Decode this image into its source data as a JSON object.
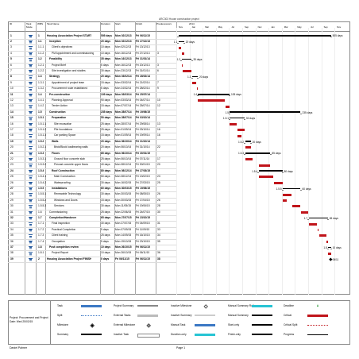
{
  "project_title": "ARC303 House construction project",
  "columns": {
    "id": "ID",
    "mode": "Task Mode",
    "wbs": "WBS",
    "name": "Task Name",
    "duration": "Duration",
    "start": "Start",
    "finish": "Finish",
    "pred": "Predecessors"
  },
  "timescale": {
    "years": [
      "2014"
    ],
    "months": [
      "Nov",
      "Jan",
      "Mar",
      "May",
      "Jul",
      "Sep",
      "Nov",
      "Jan",
      "Mar",
      "May",
      "Jul",
      "Sep",
      "Nov"
    ]
  },
  "tasks": [
    {
      "id": "1",
      "wbs": "1",
      "name": "Housing Association Project START",
      "duration": "505 days",
      "start": "Mon 02/12/13",
      "finish": "Fri 06/11/15",
      "pred": "",
      "summary": true,
      "label": "505 days"
    },
    {
      "id": "2",
      "wbs": "1.1",
      "name": "Inception",
      "duration": "20 days",
      "start": "Mon 02/12/13",
      "finish": "Fri 27/12/13",
      "pred": "",
      "summary": true,
      "label": "20 days",
      "wbs_tag": "1.1"
    },
    {
      "id": "3",
      "wbs": "1.1.1",
      "name": "Client's objectives",
      "duration": "10 days",
      "start": "Mon 02/12/13",
      "finish": "Fri 13/12/13",
      "pred": "",
      "summary": false
    },
    {
      "id": "4",
      "wbs": "1.1.2",
      "name": "PM Appointment and commissioning",
      "duration": "10 days",
      "start": "Mon 16/12/13",
      "finish": "Fri 27/12/13",
      "pred": "3",
      "summary": false
    },
    {
      "id": "5",
      "wbs": "1.2",
      "name": "Feasibility",
      "duration": "35 days",
      "start": "Mon 16/12/13",
      "finish": "Fri 31/01/14",
      "pred": "",
      "summary": true,
      "label": "35 days",
      "wbs_tag": "1.2"
    },
    {
      "id": "6",
      "wbs": "1.2.1",
      "name": "Project Brief",
      "duration": "5 days",
      "start": "Mon 16/12/13",
      "finish": "Fri 20/12/13",
      "pred": "3",
      "summary": false
    },
    {
      "id": "7",
      "wbs": "1.2.2",
      "name": "Site investigation and studies",
      "duration": "30 days",
      "start": "Mon 23/12/13",
      "finish": "Fri 31/01/14",
      "pred": "6",
      "summary": false
    },
    {
      "id": "8",
      "wbs": "1.3",
      "name": "Strategy",
      "duration": "20 days",
      "start": "Mon 03/02/14",
      "finish": "Fri 28/02/14",
      "pred": "",
      "summary": true,
      "label": "20 days",
      "wbs_tag": "1.3"
    },
    {
      "id": "9",
      "wbs": "1.3.1",
      "name": "Appointment of project team",
      "duration": "15 days",
      "start": "Mon 03/02/14",
      "finish": "Fri 21/02/14",
      "pred": "7",
      "summary": false
    },
    {
      "id": "10",
      "wbs": "1.3.2",
      "name": "Procurement route established",
      "duration": "5 days",
      "start": "Mon 24/02/14",
      "finish": "Fri 28/02/14",
      "pred": "9",
      "summary": false
    },
    {
      "id": "11",
      "wbs": "1.4",
      "name": "Pre-construction",
      "duration": "105 days",
      "start": "Mon 03/03/14",
      "finish": "Fri 25/07/14",
      "pred": "",
      "summary": true,
      "label": "105 days",
      "wbs_tag": "1.4"
    },
    {
      "id": "12",
      "wbs": "1.4.1",
      "name": "Planning Approval",
      "duration": "90 days",
      "start": "Mon 03/03/14",
      "finish": "Fri 04/07/14",
      "pred": "10",
      "summary": false
    },
    {
      "id": "13",
      "wbs": "1.4.2",
      "name": "Tender Action",
      "duration": "15 days",
      "start": "Mon 07/07/14",
      "finish": "Fri 25/07/14",
      "pred": "12",
      "summary": false
    },
    {
      "id": "14",
      "wbs": "1.5",
      "name": "Construction",
      "duration": "235 days",
      "start": "Mon 28/07/14",
      "finish": "Fri 19/06/15",
      "pred": "",
      "summary": true,
      "label": "235 days",
      "wbs_tag": "1.5"
    },
    {
      "id": "15",
      "wbs": "1.5.1",
      "name": "Preparation",
      "duration": "50 days",
      "start": "Mon 28/07/14",
      "finish": "Fri 03/10/14",
      "pred": "",
      "summary": true,
      "label": "50 days",
      "wbs_tag": "1.5.1"
    },
    {
      "id": "16",
      "wbs": "1.5.1.1",
      "name": "Site excavation",
      "duration": "25 days",
      "start": "Mon 28/07/14",
      "finish": "Fri 29/08/14",
      "pred": "13",
      "summary": false
    },
    {
      "id": "17",
      "wbs": "1.5.1.2",
      "name": "Pile foundations",
      "duration": "25 days",
      "start": "Mon 01/09/14",
      "finish": "Fri 03/10/14",
      "pred": "16",
      "summary": false
    },
    {
      "id": "18",
      "wbs": "1.5.1.3",
      "name": "Car parking Space",
      "duration": "15 days",
      "start": "Mon 01/09/14",
      "finish": "Fri 19/09/14",
      "pred": "16",
      "summary": false
    },
    {
      "id": "19",
      "wbs": "1.5.2",
      "name": "Walls",
      "duration": "20 days",
      "start": "Mon 06/10/14",
      "finish": "Fri 31/10/14",
      "pred": "",
      "summary": true,
      "label": "20 days",
      "wbs_tag": "1.5.2"
    },
    {
      "id": "20",
      "wbs": "1.5.2.1",
      "name": "Brick/Block loadbearing walls",
      "duration": "20 days",
      "start": "Mon 06/10/14",
      "finish": "Fri 31/10/14",
      "pred": "22",
      "summary": false
    },
    {
      "id": "21",
      "wbs": "1.5.3",
      "name": "Floors",
      "duration": "85 days",
      "start": "Mon 06/10/14",
      "finish": "Fri 30/01/15",
      "pred": "",
      "summary": true,
      "label": "85 days",
      "wbs_tag": "1.5.3"
    },
    {
      "id": "22",
      "wbs": "1.5.3.1",
      "name": "Ground floor concrete slab",
      "duration": "25 days",
      "start": "Mon 06/10/14",
      "finish": "Fri 07/11/14",
      "pred": "17",
      "summary": false
    },
    {
      "id": "23",
      "wbs": "1.5.3.2",
      "name": "Precast concrete upper floors",
      "duration": "40 days",
      "start": "Mon 08/12/14",
      "finish": "Fri 30/01/15",
      "pred": "20",
      "summary": false
    },
    {
      "id": "24",
      "wbs": "1.5.4",
      "name": "Roof Construction",
      "duration": "80 days",
      "start": "Mon 08/12/14",
      "finish": "Fri 27/03/15",
      "pred": "",
      "summary": true,
      "label": "80 days",
      "wbs_tag": "1.5.4"
    },
    {
      "id": "25",
      "wbs": "1.5.4.1",
      "name": "Main Construction",
      "duration": "50 days",
      "start": "Mon 08/12/14",
      "finish": "Fri 13/02/15",
      "pred": "23",
      "summary": false
    },
    {
      "id": "26",
      "wbs": "1.5.4.2",
      "name": "Waterproofing",
      "duration": "30 days",
      "start": "Mon 16/02/15",
      "finish": "Fri 27/03/15",
      "pred": "25",
      "summary": false
    },
    {
      "id": "27",
      "wbs": "1.5.5",
      "name": "Installations",
      "duration": "60 days",
      "start": "Mon 30/03/15",
      "finish": "Fri 19/06/15",
      "pred": "",
      "summary": true,
      "label": "60 days",
      "wbs_tag": "1.5.5"
    },
    {
      "id": "28",
      "wbs": "1.5.5.1",
      "name": "Renewable Technology",
      "duration": "30 days",
      "start": "Mon 30/03/15",
      "finish": "Fri 08/05/15",
      "pred": "26",
      "summary": false
    },
    {
      "id": "29",
      "wbs": "1.5.5.2",
      "name": "Windows and Doors",
      "duration": "15 days",
      "start": "Mon 30/03/15",
      "finish": "Fri 17/04/15",
      "pred": "26",
      "summary": false
    },
    {
      "id": "30",
      "wbs": "1.5.5.3",
      "name": "Services",
      "duration": "30 days",
      "start": "Mon 11/05/15",
      "finish": "Fri 19/06/15",
      "pred": "28",
      "summary": false
    },
    {
      "id": "31",
      "wbs": "1.6",
      "name": "Commissioning",
      "duration": "25 days",
      "start": "Mon 22/06/15",
      "finish": "Fri 24/07/15",
      "pred": "30",
      "summary": false
    },
    {
      "id": "32",
      "wbs": "1.7",
      "name": "Completion/Handover",
      "duration": "65 days",
      "start": "Mon 27/07/15",
      "finish": "Fri 23/10/15",
      "pred": "",
      "summary": true,
      "label": "65 days",
      "wbs_tag": "1.7"
    },
    {
      "id": "33",
      "wbs": "1.7.1",
      "name": "Final inspection",
      "duration": "30 days",
      "start": "Mon 27/07/15",
      "finish": "Fri 04/09/15",
      "pred": "31",
      "summary": false
    },
    {
      "id": "34",
      "wbs": "1.7.2",
      "name": "Practical Completion",
      "duration": "5 days",
      "start": "Mon 07/09/15",
      "finish": "Fri 11/09/15",
      "pred": "33",
      "summary": false
    },
    {
      "id": "35",
      "wbs": "1.7.3",
      "name": "Client training",
      "duration": "25 days",
      "start": "Mon 14/09/15",
      "finish": "Fri 16/10/15",
      "pred": "34",
      "summary": false
    },
    {
      "id": "36",
      "wbs": "1.7.4",
      "name": "Occupation",
      "duration": "5 days",
      "start": "Mon 19/10/15",
      "finish": "Fri 23/10/15",
      "pred": "35",
      "summary": false
    },
    {
      "id": "37",
      "wbs": "1.8",
      "name": "Post completion review",
      "duration": "10 days",
      "start": "Mon 26/10/15",
      "finish": "Fri 06/11/15",
      "pred": "",
      "summary": true,
      "label": "10 days",
      "wbs_tag": "1.8"
    },
    {
      "id": "38",
      "wbs": "1.8.1",
      "name": "Project Report",
      "duration": "10 days",
      "start": "Mon 26/10/15",
      "finish": "Fri 06/11/15",
      "pred": "36",
      "summary": false
    },
    {
      "id": "39",
      "wbs": "2",
      "name": "Housing Association Project FINISH",
      "duration": "0 days",
      "start": "Fri 06/11/15",
      "finish": "Fri 06/11/15",
      "pred": "38",
      "summary": true,
      "milestone": true,
      "label": "06/11"
    }
  ],
  "legend": {
    "project_info": "Project: Procurement and Project\nDate: Wed 25/03/15",
    "items": [
      [
        "Task",
        "Project Summary",
        "Inactive Milestone",
        "Manual Summary Rollup",
        "Deadline"
      ],
      [
        "Split",
        "External Tasks",
        "Inactive Summary",
        "Manual Summary",
        "Critical"
      ],
      [
        "Milestone",
        "External Milestone",
        "Manual Task",
        "Start-only",
        "Critical Split"
      ],
      [
        "Summary",
        "Inactive Task",
        "Duration-only",
        "Finish-only",
        "Progress"
      ]
    ]
  },
  "footer": {
    "left": "Daniel Palmer",
    "center": "Page 1"
  },
  "colors": {
    "critical": "#c0141a",
    "summary": "#000000",
    "icon": "#2a5d9f",
    "progress": "#27c4d4"
  }
}
